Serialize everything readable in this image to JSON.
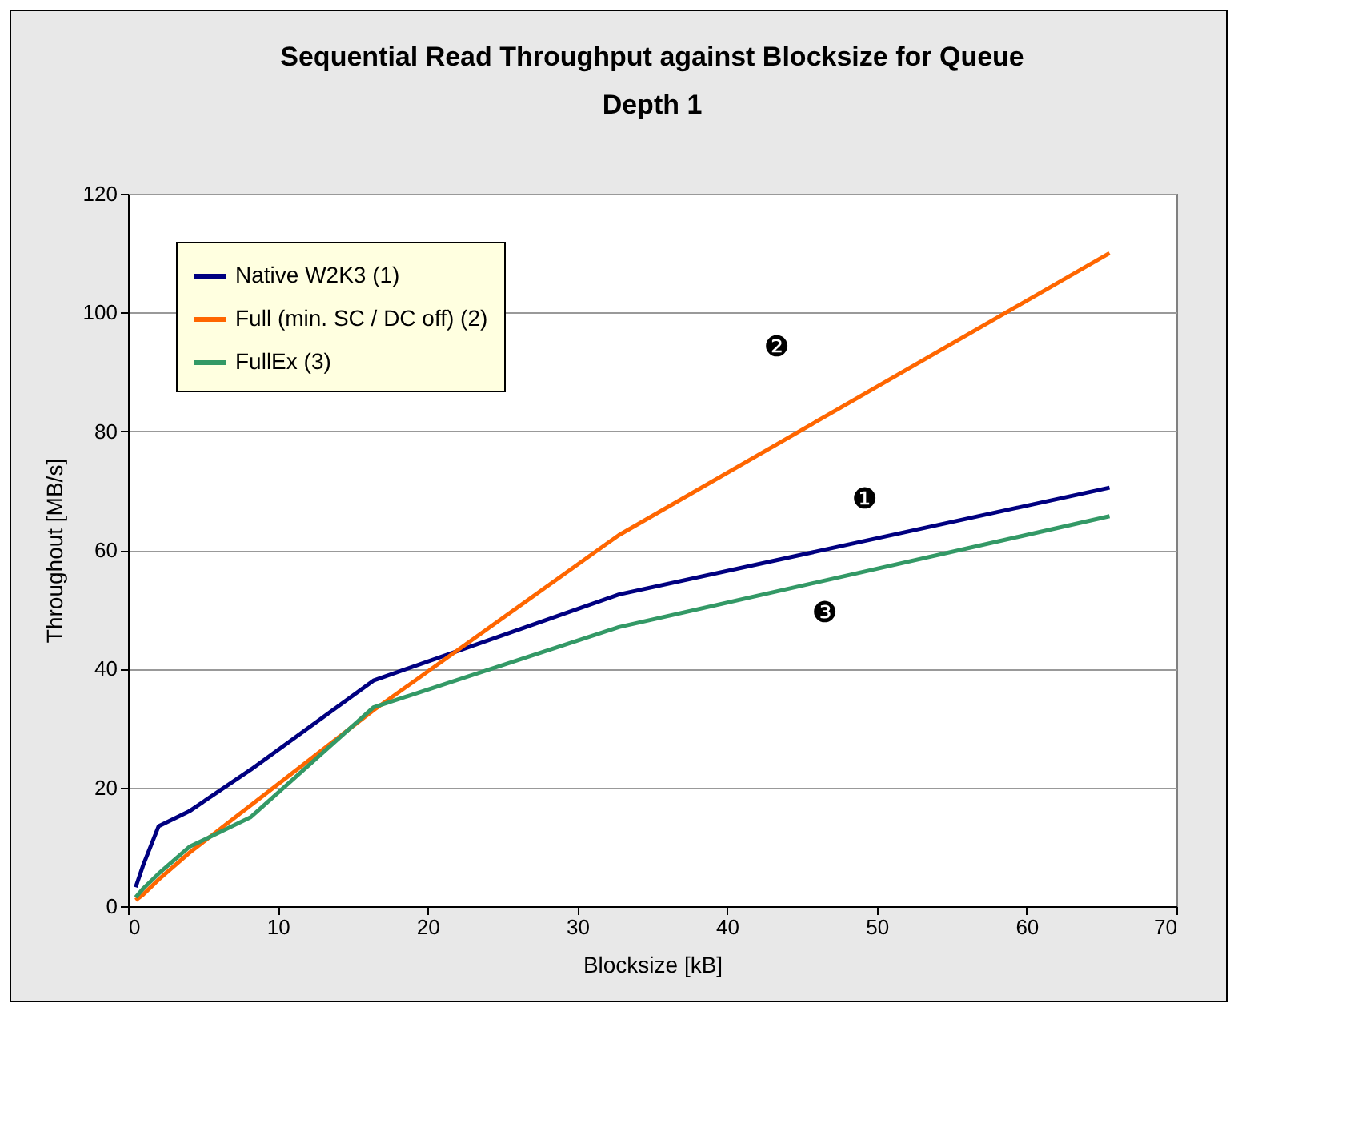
{
  "chart_data": {
    "type": "line",
    "title": [
      "Sequential Read Throughput against Blocksize for Queue",
      "Depth 1"
    ],
    "xlabel": "Blocksize [kB]",
    "ylabel": "Throughout [MB/s]",
    "x": [
      0.512,
      1.024,
      2.048,
      4.096,
      8.192,
      16.384,
      32.768,
      65.536
    ],
    "series": [
      {
        "name": "Native W2K3 (1)",
        "color": "#000080",
        "values": [
          3.2,
          7,
          13.5,
          16,
          23,
          38,
          52.5,
          70.5
        ]
      },
      {
        "name": "Full (min. SC / DC off) (2)",
        "color": "#ff6600",
        "values": [
          1,
          2,
          4.5,
          9,
          17,
          33,
          62.5,
          110
        ]
      },
      {
        "name": "FullEx (3)",
        "color": "#339966",
        "values": [
          1.5,
          3,
          5.5,
          10,
          15,
          33.5,
          47,
          65.7
        ]
      }
    ],
    "xlim": [
      0,
      70
    ],
    "xticks": [
      0,
      10,
      20,
      30,
      40,
      50,
      60,
      70
    ],
    "ylim": [
      0,
      120
    ],
    "yticks": [
      0,
      20,
      40,
      60,
      80,
      100,
      120
    ],
    "grid": "y",
    "legend": "top left",
    "line_style": "solid",
    "marker": "none",
    "annotations": [
      "❶",
      "❷",
      "❸"
    ]
  }
}
